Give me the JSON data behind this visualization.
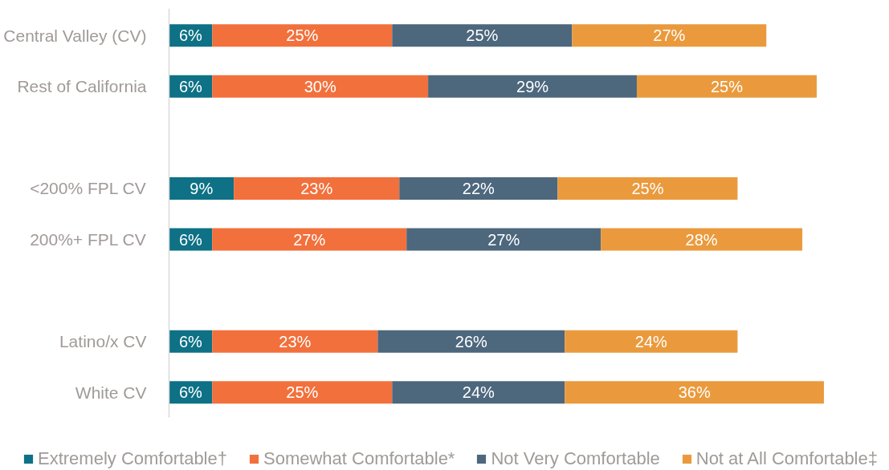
{
  "chart_data": {
    "type": "bar",
    "orientation": "horizontal",
    "stacked": true,
    "categories": [
      "Central Valley (CV)",
      "Rest of California",
      null,
      "<200% FPL CV",
      "200%+ FPL CV",
      null,
      "Latino/x CV",
      "White CV"
    ],
    "series": [
      {
        "name": "Extremely Comfortable†",
        "color": "#0e7185",
        "values": [
          6,
          6,
          null,
          9,
          6,
          null,
          6,
          6
        ],
        "value_labels": [
          "6%",
          "6%",
          null,
          "9%",
          "6%",
          null,
          "6%",
          "6%"
        ]
      },
      {
        "name": "Somewhat Comfortable*",
        "color": "#f2703c",
        "values": [
          25,
          30,
          null,
          23,
          27,
          null,
          23,
          25
        ],
        "value_labels": [
          "25%",
          "30%",
          null,
          "23%",
          "27%",
          null,
          "23%",
          "25%"
        ]
      },
      {
        "name": "Not Very Comfortable",
        "color": "#4d677d",
        "values": [
          25,
          29,
          null,
          22,
          27,
          null,
          26,
          24
        ],
        "value_labels": [
          "25%",
          "29%",
          null,
          "22%",
          "27%",
          null,
          "26%",
          "24%"
        ]
      },
      {
        "name": "Not at All Comfortable‡",
        "color": "#ea9a3c",
        "values": [
          27,
          25,
          null,
          25,
          28,
          null,
          24,
          36
        ],
        "value_labels": [
          "27%",
          "25%",
          null,
          "25%",
          "28%",
          null,
          "24%",
          "36%"
        ]
      }
    ],
    "legend": "bottom",
    "tick_labels": "y"
  }
}
